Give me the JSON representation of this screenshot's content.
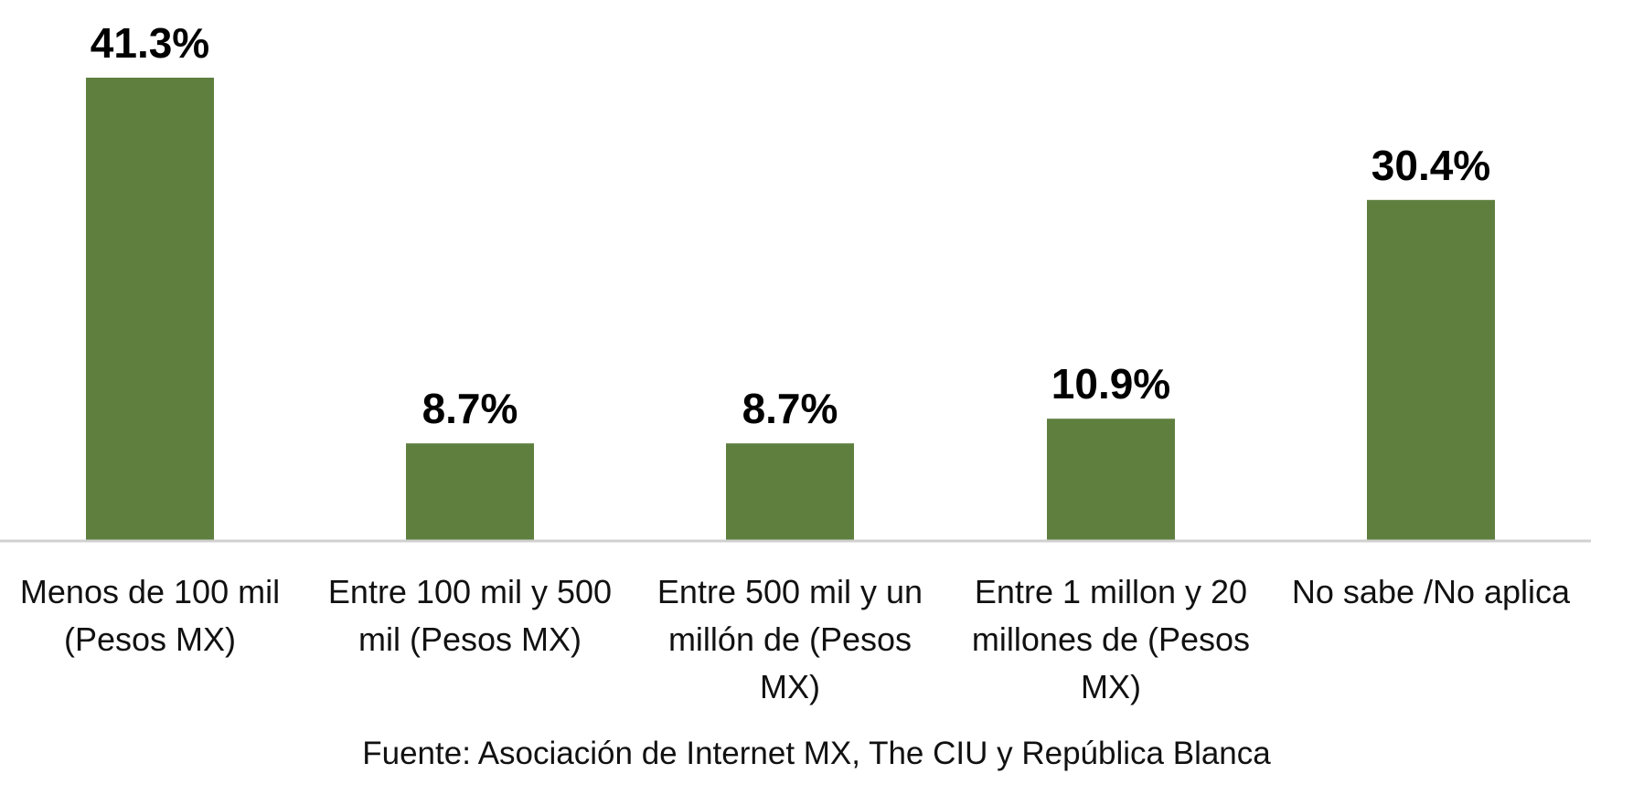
{
  "chart_data": {
    "type": "bar",
    "title": "",
    "xlabel": "",
    "ylabel": "",
    "ylim": [
      0,
      41.3
    ],
    "grid": false,
    "categories": [
      [
        "Menos de 100 mil",
        "(Pesos MX)"
      ],
      [
        "Entre 100 mil y 500",
        "mil (Pesos MX)"
      ],
      [
        "Entre 500 mil y un",
        "millón de (Pesos",
        "MX)"
      ],
      [
        "Entre 1 millon y 20",
        "millones de (Pesos",
        "MX)"
      ],
      [
        "No sabe /No aplica"
      ]
    ],
    "values": [
      41.3,
      8.7,
      8.7,
      10.9,
      30.4
    ],
    "value_labels": [
      "41.3%",
      "8.7%",
      "8.7%",
      "10.9%",
      "30.4%"
    ],
    "bar_color": "#5f7f3f"
  },
  "source": "Fuente: Asociación de Internet MX, The CIU y República Blanca"
}
